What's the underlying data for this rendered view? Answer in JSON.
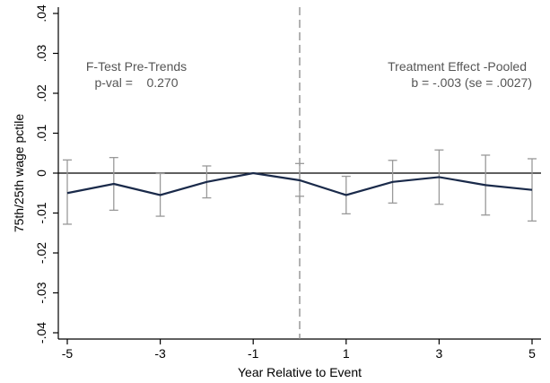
{
  "chart_data": {
    "type": "line",
    "xlabel": "Year Relative to Event",
    "ylabel": "75th/25th wage pctile",
    "xlim": [
      -5,
      5
    ],
    "ylim": [
      -0.04,
      0.04
    ],
    "x_ticks": [
      -5,
      -3,
      -1,
      1,
      3,
      5
    ],
    "x_tick_labels": [
      "-5",
      "-3",
      "-1",
      "1",
      "3",
      "5"
    ],
    "y_ticks": [
      -0.04,
      -0.03,
      -0.02,
      -0.01,
      0,
      0.01,
      0.02,
      0.03,
      0.04
    ],
    "y_tick_labels": [
      "-.04",
      "-.03",
      "-.02",
      "-.01",
      "0",
      ".01",
      ".02",
      ".03",
      ".04"
    ],
    "event_line_x": 0,
    "zero_line_y": 0,
    "grid": false,
    "series": [
      {
        "x": [
          -5,
          -4,
          -3,
          -2,
          -1,
          0,
          1,
          2,
          3,
          4,
          5
        ],
        "values": [
          -0.005,
          -0.0027,
          -0.0055,
          -0.0022,
          0.0,
          -0.0018,
          -0.0055,
          -0.0022,
          -0.001,
          -0.003,
          -0.0042
        ],
        "ci_low": [
          -0.0128,
          -0.0093,
          -0.0108,
          -0.0062,
          0.0,
          -0.0058,
          -0.0102,
          -0.0075,
          -0.0078,
          -0.0105,
          -0.012
        ],
        "ci_high": [
          0.0033,
          0.0039,
          -0.0001,
          0.0018,
          0.0,
          0.0024,
          -0.0008,
          0.0032,
          0.0058,
          0.0045,
          0.0036
        ]
      }
    ],
    "annotations": {
      "left_title": "F-Test Pre-Trends",
      "left_value": "p-val =    0.270",
      "right_title": "Treatment Effect -Pooled",
      "right_value": "b = -.003 (se = .0027)"
    },
    "colors": {
      "line": "#1a2a4a",
      "ci": "#999999",
      "event_line": "#888888",
      "zero_line": "#000000",
      "annotation": "#555555"
    }
  }
}
